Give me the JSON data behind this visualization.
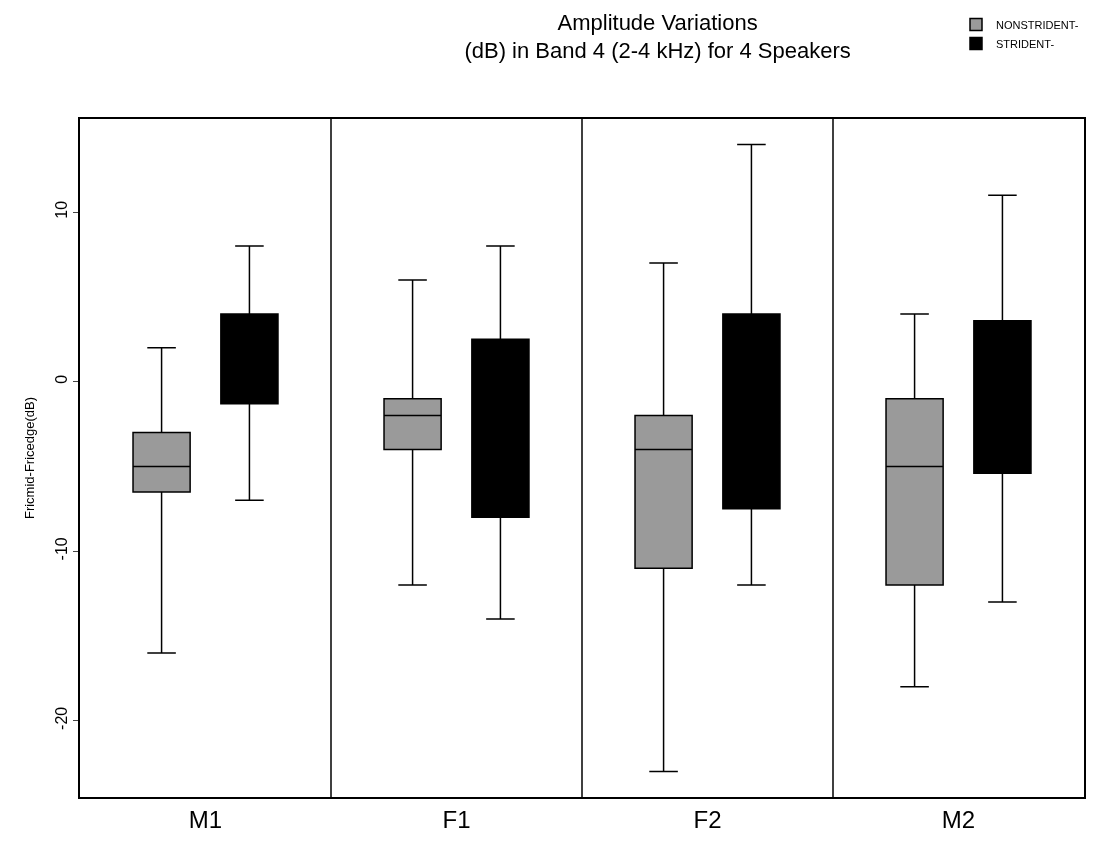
{
  "chart_data": {
    "type": "box",
    "title": "Amplitude Variations\n(dB) in Band 4 (2-4 kHz) for 4 Speakers",
    "ylabel": "Fricmid-Fricedge(dB)",
    "categories": [
      "M1",
      "F1",
      "F2",
      "M2"
    ],
    "series": [
      {
        "name": "NONSTRIDENT-",
        "color": "#9a9a9a",
        "boxes": [
          {
            "low": -16,
            "q1": -6.5,
            "median": -5,
            "q3": -3,
            "high": 2
          },
          {
            "low": -12,
            "q1": -4,
            "median": -2,
            "q3": -1,
            "high": 6
          },
          {
            "low": -23,
            "q1": -11,
            "median": -4,
            "q3": -2,
            "high": 7
          },
          {
            "low": -18,
            "q1": -12,
            "median": -5,
            "q3": -1,
            "high": 4
          }
        ]
      },
      {
        "name": "STRIDENT-",
        "color": "#000000",
        "boxes": [
          {
            "low": -7,
            "q1": -1.3,
            "median": 1,
            "q3": 4,
            "high": 8
          },
          {
            "low": -14,
            "q1": -8,
            "median": -4,
            "q3": 2.5,
            "high": 8
          },
          {
            "low": -12,
            "q1": -7.5,
            "median": -2.4,
            "q3": 4,
            "high": 14
          },
          {
            "low": -13,
            "q1": -5.4,
            "median": -3,
            "q3": 3.6,
            "high": 11
          }
        ]
      }
    ],
    "ylim": [
      -24.5,
      15.5
    ],
    "yticks": [
      -20,
      -10,
      0,
      10
    ],
    "legend": "top right"
  }
}
